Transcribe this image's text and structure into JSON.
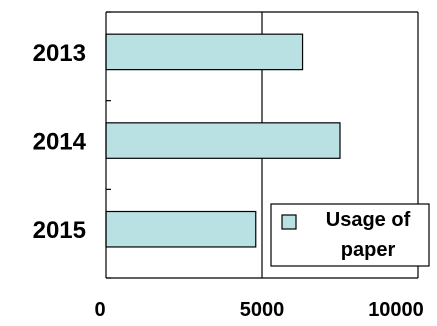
{
  "chart_data": {
    "type": "bar",
    "orientation": "horizontal",
    "categories": [
      "2013",
      "2014",
      "2015"
    ],
    "series": [
      {
        "name": "Usage of paper",
        "values": [
          6300,
          7500,
          4800
        ],
        "color": "#b9e1e3"
      }
    ],
    "xlim": [
      0,
      10000
    ],
    "xticks": [
      "0",
      "5000",
      "10000"
    ],
    "xticks_values": [
      0,
      5000,
      10000
    ],
    "grid": "vertical-at-5000",
    "legend": {
      "position": "bottom-right",
      "entries": [
        "Usage of paper"
      ],
      "lines": [
        "Usage of",
        "paper"
      ]
    }
  }
}
